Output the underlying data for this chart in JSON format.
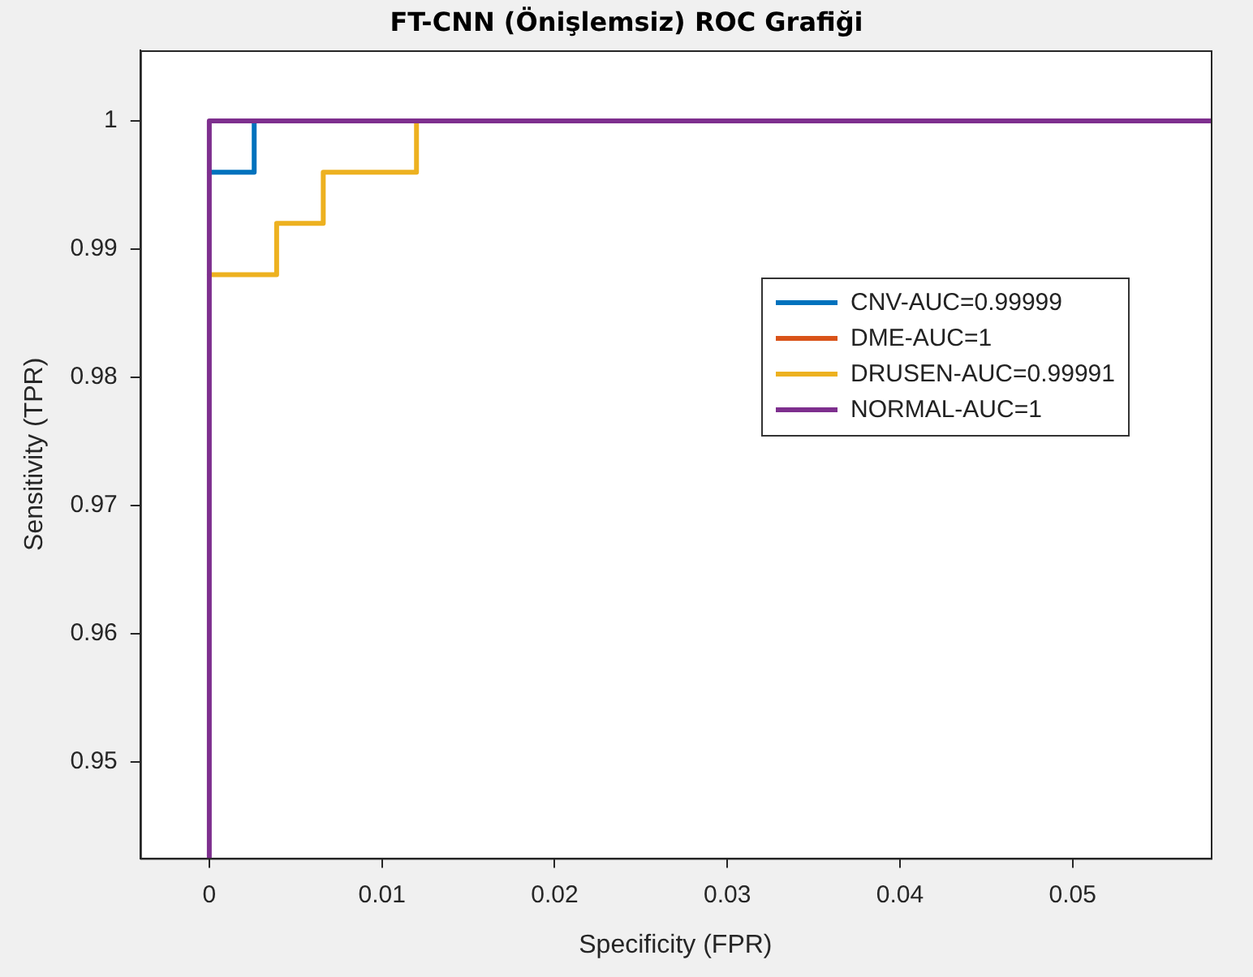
{
  "chart_data": {
    "type": "line",
    "title": "FT-CNN (Önişlemsiz) ROC Grafiği",
    "xlabel": "Specificity (FPR)",
    "ylabel": "Sensitivity (TPR)",
    "xlim": [
      -0.004,
      0.058
    ],
    "xticks": [
      0,
      0.01,
      0.02,
      0.03,
      0.04,
      0.05
    ],
    "ylim": [
      0.9425,
      1.0055
    ],
    "yticks": [
      0.95,
      0.96,
      0.97,
      0.98,
      0.99,
      1
    ],
    "grid": false,
    "legend": "right",
    "marker": "none",
    "line_style": "solid",
    "series": [
      {
        "name": "CNV-AUC=0.99999",
        "color": "#0072bd",
        "x": [
          0,
          0.0026,
          0.0026
        ],
        "values": [
          0.996,
          0.996,
          1
        ]
      },
      {
        "name": "DME-AUC=1",
        "color": "#d95319"
      },
      {
        "name": "DRUSEN-AUC=0.99991",
        "color": "#edb120",
        "x": [
          0,
          0.0039,
          0.0039,
          0.0066,
          0.0066,
          0.012,
          0.012
        ],
        "values": [
          0.988,
          0.988,
          0.992,
          0.992,
          0.996,
          0.996,
          1
        ]
      },
      {
        "name": "NORMAL-AUC=1",
        "color": "#7e2f8e",
        "x": [
          0,
          0,
          0.058
        ],
        "values": [
          0.9425,
          1,
          1
        ]
      }
    ]
  }
}
